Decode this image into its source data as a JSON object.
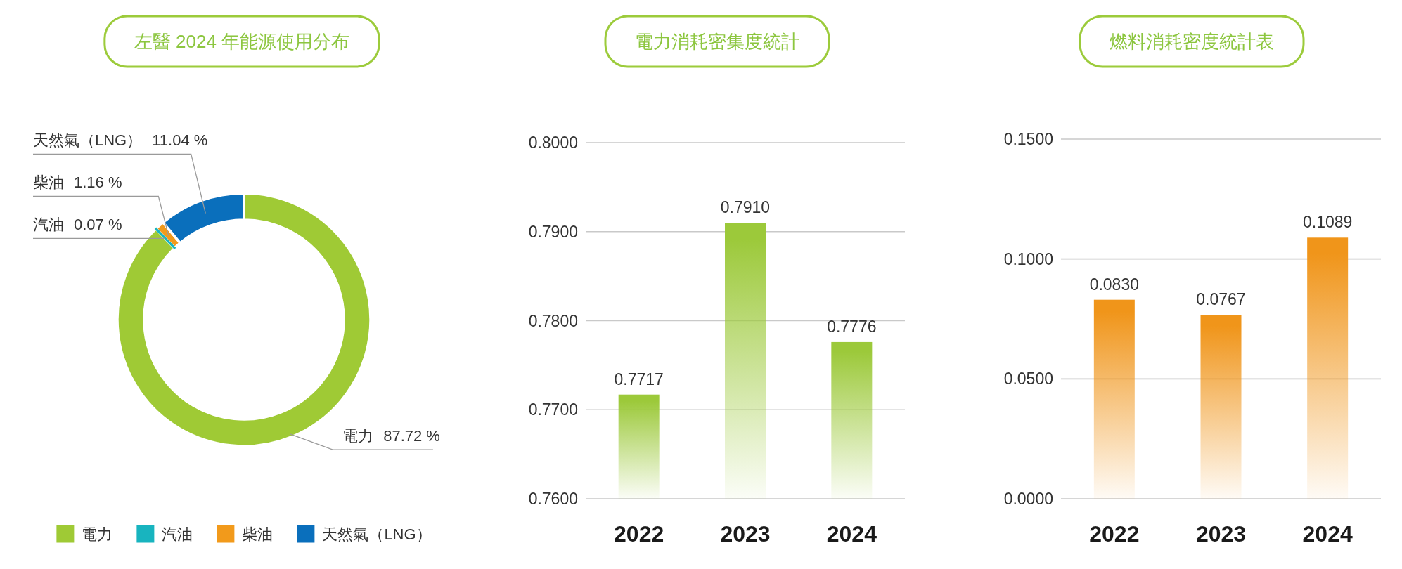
{
  "chart_data": [
    {
      "type": "donut",
      "title": "左醫 2024 年能源使用分布",
      "categories": [
        "電力",
        "汽油",
        "柴油",
        "天然氣（LNG）"
      ],
      "values": [
        87.72,
        0.07,
        1.16,
        11.04
      ],
      "colors": [
        "#9fca35",
        "#18b4bf",
        "#f29a1b",
        "#0a6fbc"
      ],
      "value_labels": [
        "87.72 %",
        "0.07 %",
        "1.16 %",
        "11.04 %"
      ],
      "legend": "bottom"
    },
    {
      "type": "bar",
      "title": "電力消耗密集度統計",
      "categories": [
        "2022",
        "2023",
        "2024"
      ],
      "values": [
        0.7717,
        0.791,
        0.7776
      ],
      "value_labels": [
        "0.7717",
        "0.7910",
        "0.7776"
      ],
      "color": "#9cc93a",
      "ylim": [
        0.76,
        0.8
      ],
      "yticks": [
        {
          "value": 0.76,
          "label": "0.7600"
        },
        {
          "value": 0.77,
          "label": "0.7700"
        },
        {
          "value": 0.78,
          "label": "0.7800"
        },
        {
          "value": 0.79,
          "label": "0.7900"
        },
        {
          "value": 0.8,
          "label": "0.8000"
        }
      ],
      "grid": "y"
    },
    {
      "type": "bar",
      "title": "燃料消耗密度統計表",
      "categories": [
        "2022",
        "2023",
        "2024"
      ],
      "values": [
        0.083,
        0.0767,
        0.1089
      ],
      "value_labels": [
        "0.0830",
        "0.0767",
        "0.1089"
      ],
      "color": "#f0951a",
      "ylim": [
        0,
        0.15
      ],
      "yticks": [
        {
          "value": 0,
          "label": "0.0000"
        },
        {
          "value": 0.05,
          "label": "0.0500"
        },
        {
          "value": 0.1,
          "label": "0.1000"
        },
        {
          "value": 0.15,
          "label": "0.1500"
        }
      ],
      "grid": "y"
    }
  ]
}
